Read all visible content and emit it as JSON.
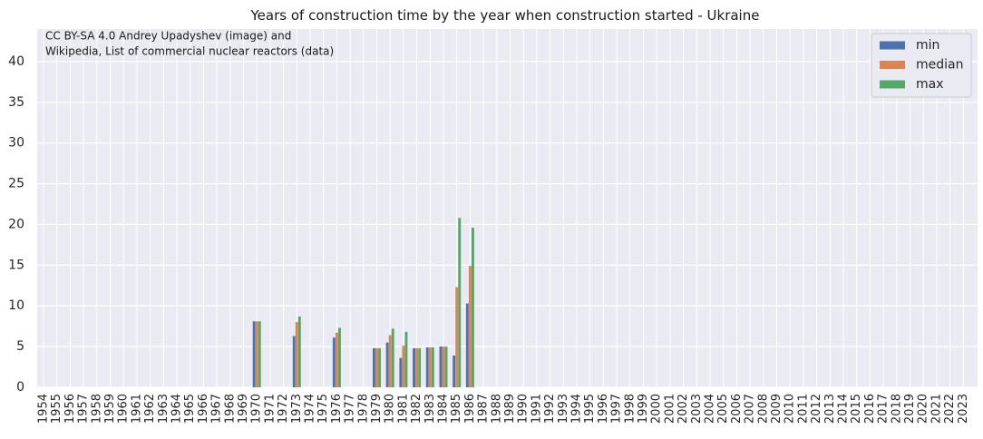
{
  "chart_data": {
    "type": "bar",
    "title": "Years of construction time by the year when construction started - Ukraine",
    "credit": [
      "CC BY-SA 4.0 Andrey Upadyshev (image) and",
      "Wikipedia, List of commercial nuclear reactors (data)"
    ],
    "ylim": [
      0,
      44
    ],
    "yticks": [
      0,
      5,
      10,
      15,
      20,
      25,
      30,
      35,
      40
    ],
    "grid": true,
    "legend_position": "top-right",
    "categories": [
      "1954",
      "1955",
      "1956",
      "1957",
      "1958",
      "1959",
      "1960",
      "1961",
      "1962",
      "1963",
      "1964",
      "1965",
      "1966",
      "1967",
      "1968",
      "1969",
      "1970",
      "1971",
      "1972",
      "1973",
      "1974",
      "1975",
      "1976",
      "1977",
      "1978",
      "1979",
      "1980",
      "1981",
      "1982",
      "1983",
      "1984",
      "1985",
      "1986",
      "1987",
      "1988",
      "1989",
      "1990",
      "1991",
      "1992",
      "1993",
      "1994",
      "1995",
      "1996",
      "1997",
      "1998",
      "1999",
      "2000",
      "2001",
      "2002",
      "2003",
      "2004",
      "2005",
      "2006",
      "2007",
      "2008",
      "2009",
      "2010",
      "2011",
      "2012",
      "2013",
      "2014",
      "2015",
      "2016",
      "2017",
      "2018",
      "2019",
      "2020",
      "2021",
      "2022",
      "2023"
    ],
    "highlighted_categories": [
      "1957",
      "1979",
      "1986",
      "2011"
    ],
    "highlight_color": "#e8000b",
    "series": [
      {
        "name": "min",
        "color": "#4c72b0",
        "values": {
          "1970": 8.1,
          "1973": 6.3,
          "1976": 6.1,
          "1979": 4.8,
          "1980": 5.5,
          "1981": 3.6,
          "1982": 4.8,
          "1983": 4.9,
          "1984": 5.0,
          "1985": 3.9,
          "1986": 10.3
        }
      },
      {
        "name": "median",
        "color": "#dd8452",
        "values": {
          "1970": 8.1,
          "1973": 8.0,
          "1976": 6.7,
          "1979": 4.8,
          "1980": 6.4,
          "1981": 5.1,
          "1982": 4.8,
          "1983": 4.9,
          "1984": 5.0,
          "1985": 12.3,
          "1986": 14.9
        }
      },
      {
        "name": "max",
        "color": "#55a868",
        "values": {
          "1970": 8.1,
          "1973": 8.7,
          "1976": 7.3,
          "1979": 4.8,
          "1980": 7.2,
          "1981": 6.8,
          "1982": 4.8,
          "1983": 4.9,
          "1984": 5.0,
          "1985": 20.8,
          "1986": 19.6
        }
      }
    ]
  }
}
